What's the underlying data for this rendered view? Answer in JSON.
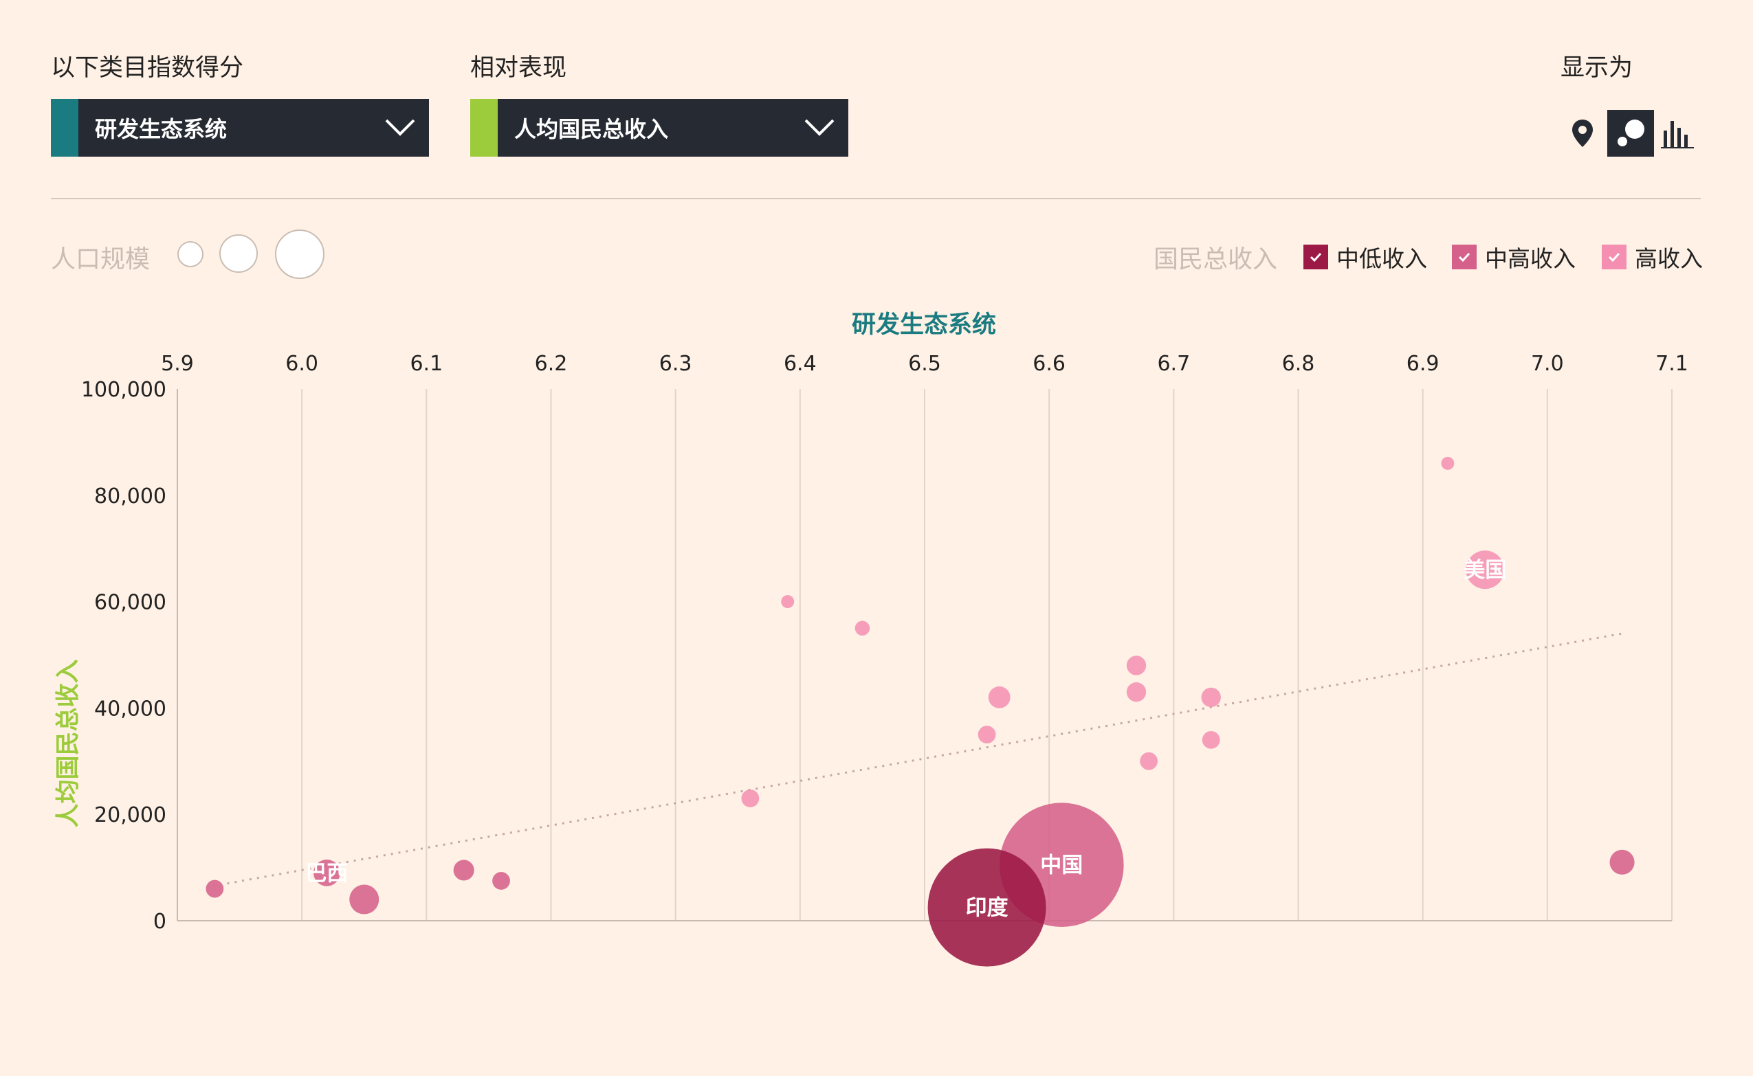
{
  "controls": {
    "category_label": "以下类目指数得分",
    "category_value": "研发生态系统",
    "category_accent": "#1a7b80",
    "relative_label": "相对表现",
    "relative_value": "人均国民总收入",
    "relative_accent": "#9ccc3c",
    "display_label": "显示为",
    "views": [
      {
        "name": "map-pin-icon",
        "active": false
      },
      {
        "name": "bubble-icon",
        "active": true
      },
      {
        "name": "bar-chart-icon",
        "active": false
      }
    ]
  },
  "population_legend": {
    "title": "人口规模"
  },
  "income_legend": {
    "title": "国民总收入",
    "items": [
      {
        "label": "中低收入",
        "color": "#9c1845",
        "checked": true
      },
      {
        "label": "中高收入",
        "color": "#d5618a",
        "checked": true
      },
      {
        "label": "高收入",
        "color": "#f48fb1",
        "checked": true
      }
    ]
  },
  "chart_data": {
    "type": "scatter",
    "xlabel": "研发生态系统",
    "ylabel": "人均国民总收入",
    "xlim": [
      5.9,
      7.1
    ],
    "ylim": [
      0,
      100000
    ],
    "x_ticks": [
      "5.9",
      "6.0",
      "6.1",
      "6.2",
      "6.3",
      "6.4",
      "6.5",
      "6.6",
      "6.7",
      "6.8",
      "6.9",
      "7.0",
      "7.1"
    ],
    "y_ticks": [
      "0",
      "20,000",
      "40,000",
      "60,000",
      "80,000",
      "100,000"
    ],
    "grid": "vertical",
    "trendline": {
      "x": [
        5.94,
        7.06
      ],
      "y": [
        7000,
        54000
      ]
    },
    "points": [
      {
        "x": 5.93,
        "y": 6000,
        "r": 0.3,
        "group": "中高收入"
      },
      {
        "x": 6.02,
        "y": 9000,
        "r": 0.45,
        "group": "中高收入",
        "label": "巴西"
      },
      {
        "x": 6.05,
        "y": 4000,
        "r": 0.5,
        "group": "中高收入"
      },
      {
        "x": 6.13,
        "y": 9500,
        "r": 0.35,
        "group": "中高收入"
      },
      {
        "x": 6.16,
        "y": 7500,
        "r": 0.3,
        "group": "中高收入"
      },
      {
        "x": 6.36,
        "y": 23000,
        "r": 0.3,
        "group": "高收入"
      },
      {
        "x": 6.39,
        "y": 60000,
        "r": 0.22,
        "group": "高收入"
      },
      {
        "x": 6.45,
        "y": 55000,
        "r": 0.25,
        "group": "高收入"
      },
      {
        "x": 6.55,
        "y": 35000,
        "r": 0.3,
        "group": "高收入"
      },
      {
        "x": 6.56,
        "y": 42000,
        "r": 0.37,
        "group": "高收入"
      },
      {
        "x": 6.67,
        "y": 48000,
        "r": 0.33,
        "group": "高收入"
      },
      {
        "x": 6.67,
        "y": 43000,
        "r": 0.33,
        "group": "高收入"
      },
      {
        "x": 6.68,
        "y": 30000,
        "r": 0.3,
        "group": "高收入"
      },
      {
        "x": 6.73,
        "y": 42000,
        "r": 0.33,
        "group": "高收入"
      },
      {
        "x": 6.73,
        "y": 34000,
        "r": 0.3,
        "group": "高收入"
      },
      {
        "x": 6.92,
        "y": 86000,
        "r": 0.22,
        "group": "高收入"
      },
      {
        "x": 6.95,
        "y": 66000,
        "r": 0.65,
        "group": "高收入",
        "label": "美国"
      },
      {
        "x": 7.06,
        "y": 11000,
        "r": 0.42,
        "group": "中高收入"
      },
      {
        "x": 6.61,
        "y": 10500,
        "r": 2.1,
        "group": "中高收入",
        "label": "中国"
      },
      {
        "x": 6.55,
        "y": 2500,
        "r": 2.0,
        "group": "中低收入",
        "label": "印度"
      }
    ]
  }
}
